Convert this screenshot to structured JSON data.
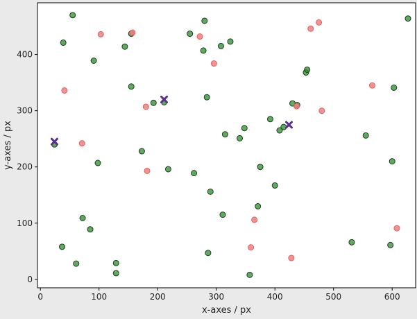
{
  "chart_data": {
    "type": "scatter",
    "title": "",
    "xlabel": "x-axes / px",
    "ylabel": "y-axes / px",
    "xlim": [
      -5,
      640
    ],
    "ylim": [
      -15,
      492
    ],
    "xticks": [
      0,
      100,
      200,
      300,
      400,
      500,
      600
    ],
    "yticks": [
      0,
      100,
      200,
      300,
      400
    ],
    "grid": false,
    "series": [
      {
        "color": "#2e8b2e",
        "edgecolor": "#1a3f1a",
        "marker": "circle",
        "points": [
          [
            55,
            470
          ],
          [
            39,
            421
          ],
          [
            91,
            389
          ],
          [
            144,
            414
          ],
          [
            155,
            437
          ],
          [
            155,
            343
          ],
          [
            173,
            228
          ],
          [
            98,
            207
          ],
          [
            24,
            240
          ],
          [
            193,
            314
          ],
          [
            211,
            315
          ],
          [
            218,
            196
          ],
          [
            255,
            437
          ],
          [
            280,
            460
          ],
          [
            278,
            407
          ],
          [
            308,
            415
          ],
          [
            324,
            423
          ],
          [
            284,
            324
          ],
          [
            315,
            258
          ],
          [
            262,
            189
          ],
          [
            290,
            156
          ],
          [
            348,
            269
          ],
          [
            340,
            251
          ],
          [
            375,
            200
          ],
          [
            392,
            285
          ],
          [
            408,
            265
          ],
          [
            415,
            271
          ],
          [
            430,
            313
          ],
          [
            438,
            310
          ],
          [
            453,
            368
          ],
          [
            455,
            373
          ],
          [
            400,
            167
          ],
          [
            371,
            130
          ],
          [
            311,
            115
          ],
          [
            286,
            47
          ],
          [
            357,
            8
          ],
          [
            37,
            58
          ],
          [
            72,
            109
          ],
          [
            85,
            89
          ],
          [
            61,
            28
          ],
          [
            129,
            29
          ],
          [
            129,
            11
          ],
          [
            555,
            256
          ],
          [
            600,
            210
          ],
          [
            603,
            341
          ],
          [
            627,
            464
          ],
          [
            531,
            66
          ],
          [
            597,
            61
          ]
        ]
      },
      {
        "color": "#f08080",
        "edgecolor": "#e06060",
        "marker": "circle",
        "points": [
          [
            103,
            436
          ],
          [
            157,
            439
          ],
          [
            41,
            336
          ],
          [
            71,
            242
          ],
          [
            180,
            307
          ],
          [
            182,
            193
          ],
          [
            272,
            432
          ],
          [
            296,
            384
          ],
          [
            461,
            446
          ],
          [
            475,
            457
          ],
          [
            437,
            308
          ],
          [
            480,
            300
          ],
          [
            566,
            345
          ],
          [
            365,
            106
          ],
          [
            359,
            57
          ],
          [
            428,
            38
          ],
          [
            608,
            91
          ]
        ]
      },
      {
        "color": "#5a2d91",
        "marker": "x",
        "points": [
          [
            24,
            245
          ],
          [
            211,
            320
          ],
          [
            424,
            275
          ]
        ]
      }
    ]
  }
}
